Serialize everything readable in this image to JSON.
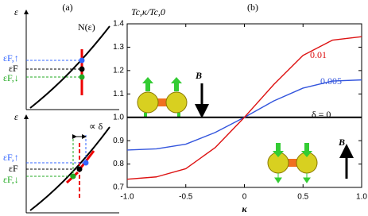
{
  "chart_data": {
    "type": "line",
    "title": "(b)",
    "y_label": "Tc,κ/Tc,0",
    "x_label": "κ",
    "x": [
      -1,
      -0.75,
      -0.5,
      -0.25,
      0,
      0.25,
      0.5,
      0.75,
      1
    ],
    "series": [
      {
        "name": "δ = 0",
        "color": "#000000",
        "values": [
          1.0,
          1.0,
          1.0,
          1.0,
          1.0,
          1.0,
          1.0,
          1.0,
          1.0
        ]
      },
      {
        "name": "0.005",
        "color": "#3355dd",
        "values": [
          0.86,
          0.865,
          0.885,
          0.935,
          1.0,
          1.07,
          1.125,
          1.155,
          1.16
        ]
      },
      {
        "name": "0.01",
        "color": "#dd1111",
        "values": [
          0.735,
          0.745,
          0.78,
          0.87,
          1.0,
          1.14,
          1.265,
          1.33,
          1.345
        ]
      }
    ],
    "xlim": [
      -1,
      1
    ],
    "xticks": [
      {
        "value": -1,
        "label": "-1.0"
      },
      -0.5,
      0,
      0.5,
      {
        "value": 1,
        "label": "1.0"
      }
    ],
    "ylim": [
      0.7,
      1.4
    ],
    "yticks": [
      0.7,
      0.8,
      0.9,
      {
        "value": 1,
        "label": "1.0"
      },
      1.1,
      1.2,
      1.3,
      1.4
    ],
    "field_label": "B"
  },
  "panel_a": {
    "title": "(a)",
    "curve_label": "N(ε)",
    "axis_label": "ε",
    "up_label": "εF,↑",
    "mid_label": "εF",
    "down_label": "εF,↓",
    "shift_label": "∝ δ"
  }
}
